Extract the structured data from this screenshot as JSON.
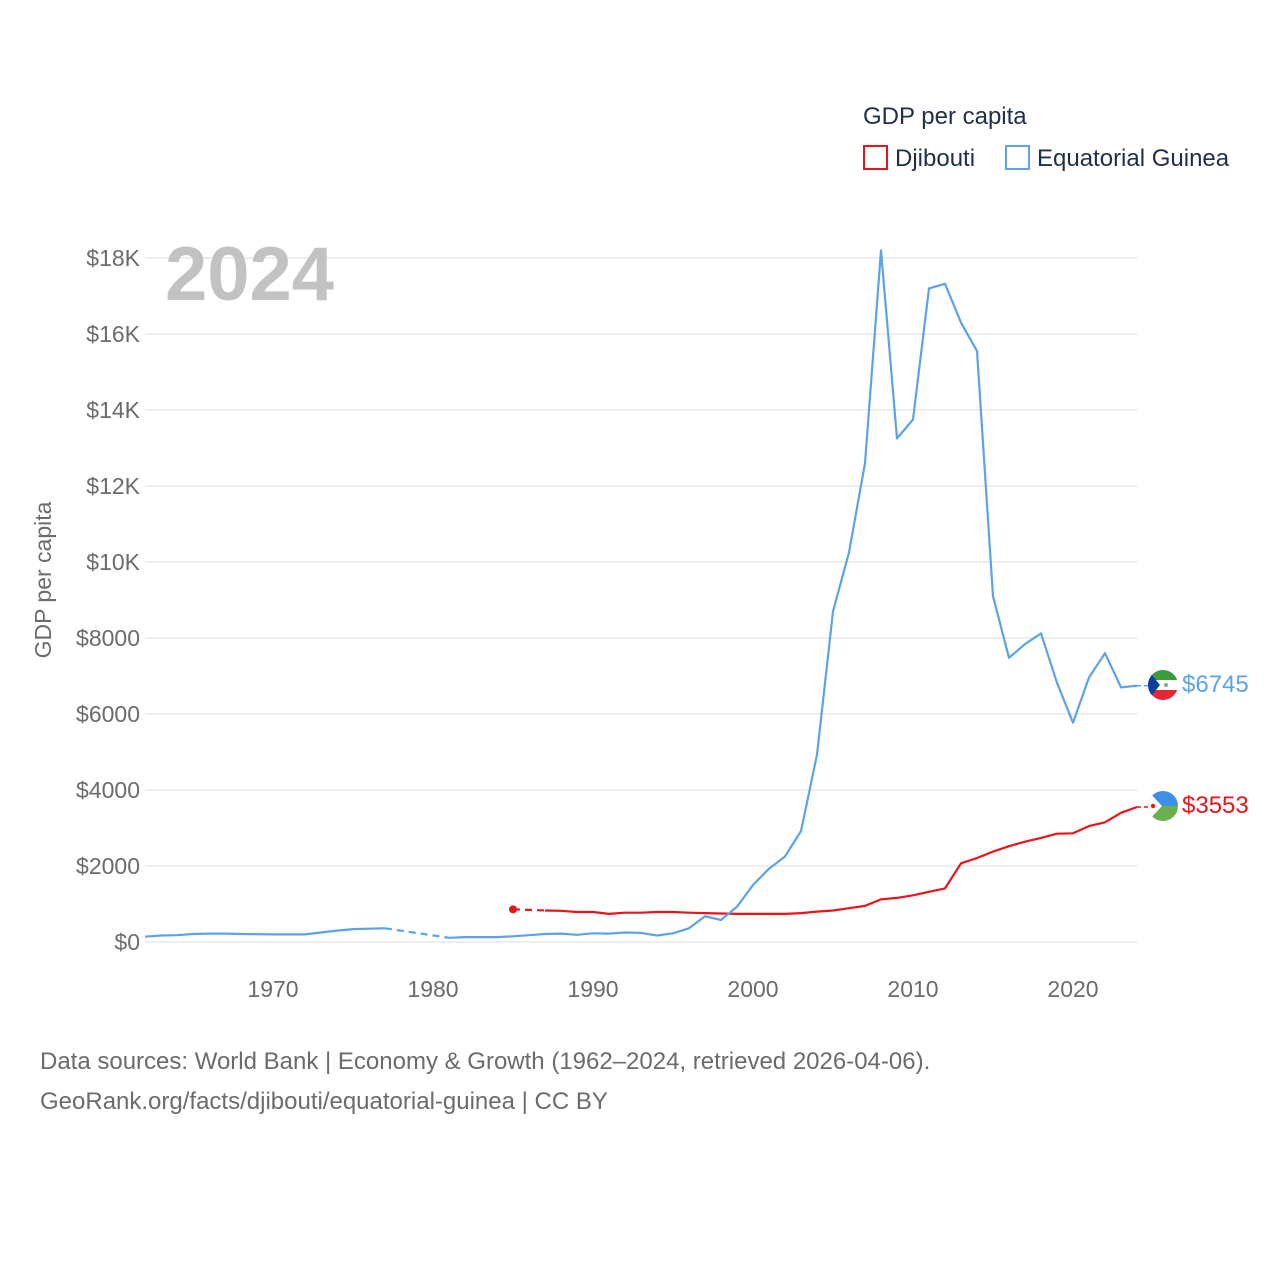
{
  "chart_data": {
    "type": "line",
    "title": "GDP per capita",
    "ylabel": "GDP per capita",
    "xlabel": "",
    "year_label": "2024",
    "xlim": [
      1962,
      2024
    ],
    "ylim": [
      0,
      18000
    ],
    "x_ticks": [
      1970,
      1980,
      1990,
      2000,
      2010,
      2020
    ],
    "x_tick_labels": [
      "1970",
      "1980",
      "1990",
      "2000",
      "2010",
      "2020"
    ],
    "y_ticks": [
      0,
      2000,
      4000,
      6000,
      8000,
      10000,
      12000,
      14000,
      16000,
      18000
    ],
    "y_tick_labels": [
      "$0",
      "$2000",
      "$4000",
      "$6000",
      "$8000",
      "$10K",
      "$12K",
      "$14K",
      "$16K",
      "$18K"
    ],
    "grid": true,
    "legend_position": "top-right",
    "series": [
      {
        "name": "Djibouti",
        "color": "#e8141a",
        "end_label": "$3553",
        "flag_icon": "djibouti-flag-icon",
        "x": [
          1985,
          1987,
          1988,
          1989,
          1990,
          1991,
          1992,
          1993,
          1994,
          1995,
          1996,
          1997,
          1998,
          1999,
          2000,
          2001,
          2002,
          2003,
          2004,
          2005,
          2006,
          2007,
          2008,
          2009,
          2010,
          2011,
          2012,
          2013,
          2014,
          2015,
          2016,
          2017,
          2018,
          2019,
          2020,
          2021,
          2022,
          2023,
          2024
        ],
        "values": [
          860,
          830,
          820,
          790,
          790,
          740,
          770,
          770,
          790,
          790,
          770,
          760,
          750,
          740,
          740,
          740,
          740,
          760,
          800,
          830,
          890,
          950,
          1120,
          1160,
          1230,
          1320,
          1410,
          2070,
          2210,
          2380,
          2520,
          2640,
          2740,
          2850,
          2860,
          3050,
          3150,
          3400,
          3553
        ],
        "dashed_segments": [
          [
            1985,
            1987
          ]
        ]
      },
      {
        "name": "Equatorial Guinea",
        "color": "#5ba3e6",
        "end_label": "$6745",
        "flag_icon": "equatorial-guinea-flag-icon",
        "x": [
          1962,
          1963,
          1964,
          1965,
          1966,
          1967,
          1968,
          1969,
          1970,
          1971,
          1972,
          1973,
          1974,
          1975,
          1976,
          1977,
          1981,
          1982,
          1983,
          1984,
          1985,
          1986,
          1987,
          1988,
          1989,
          1990,
          1991,
          1992,
          1993,
          1994,
          1995,
          1996,
          1997,
          1998,
          1999,
          2000,
          2001,
          2002,
          2003,
          2004,
          2005,
          2006,
          2007,
          2008,
          2009,
          2010,
          2011,
          2012,
          2013,
          2014,
          2015,
          2016,
          2017,
          2018,
          2019,
          2020,
          2021,
          2022,
          2023,
          2024
        ],
        "values": [
          140,
          170,
          180,
          210,
          220,
          220,
          210,
          205,
          200,
          200,
          200,
          250,
          300,
          340,
          350,
          360,
          110,
          130,
          130,
          130,
          150,
          180,
          210,
          220,
          190,
          230,
          220,
          250,
          240,
          170,
          230,
          360,
          680,
          580,
          930,
          1500,
          1930,
          2250,
          2920,
          4930,
          8700,
          10250,
          12600,
          18200,
          13250,
          13750,
          17200,
          17320,
          16300,
          15550,
          9100,
          7480,
          7840,
          8120,
          6820,
          5770,
          6960,
          7600,
          6700,
          6745
        ],
        "dashed_segments": [
          [
            1977,
            1981
          ]
        ]
      }
    ]
  },
  "footer": {
    "line1": "Data sources: World Bank | Economy & Growth (1962–2024, retrieved 2026-04-06).",
    "line2": "GeoRank.org/facts/djibouti/equatorial-guinea | CC BY"
  }
}
